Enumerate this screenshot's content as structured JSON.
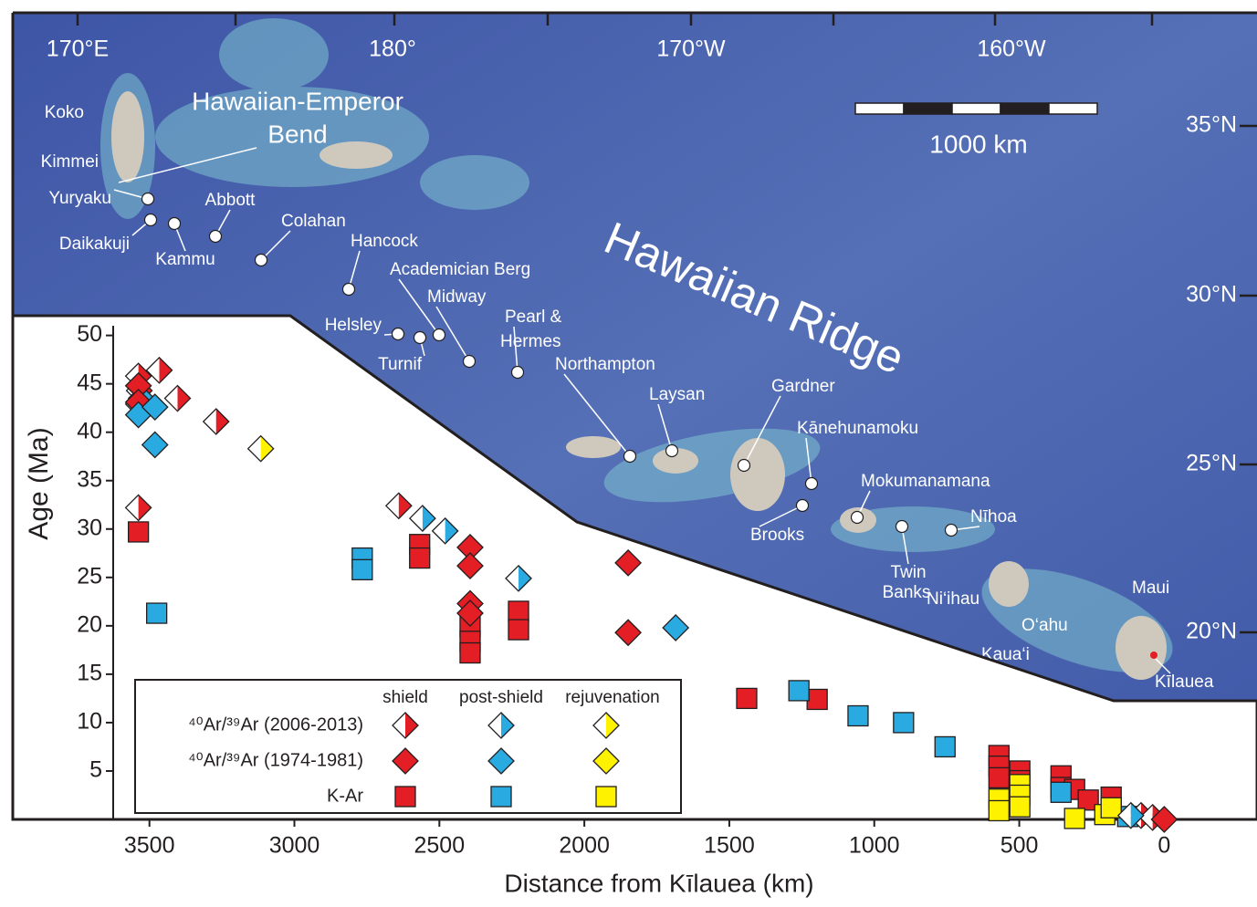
{
  "chart_data": {
    "type": "scatter",
    "xlabel": "Distance from Kīlauea (km)",
    "ylabel": "Age (Ma)",
    "xlim": [
      3625,
      -320
    ],
    "ylim": [
      0,
      51
    ],
    "xticks": [
      3500,
      3000,
      2500,
      2000,
      1500,
      1000,
      500,
      0
    ],
    "yticks": [
      5,
      10,
      15,
      20,
      25,
      30,
      35,
      40,
      45,
      50
    ],
    "stages": [
      {
        "name": "shield",
        "color": "#e31e24"
      },
      {
        "name": "post-shield",
        "color": "#29abe2"
      },
      {
        "name": "rejuvenation",
        "color": "#fff200"
      }
    ],
    "series": [
      {
        "name": "⁴⁰Ar/³⁹Ar (2006-2013)",
        "marker": "half-diamond",
        "groups": [
          {
            "x": [
              3538,
              3466,
              3535,
              3403,
              3538,
              3270,
              3538,
              2640,
              80,
              40
            ],
            "values": [
              45.8,
              46.4,
              44.3,
              43.5,
              42.9,
              41.1,
              32.2,
              32.4,
              0.4,
              0.2
            ]
          },
          {
            "x": [
              3528,
              2558,
              2480,
              2227,
              115
            ],
            "values": [
              43.5,
              31.1,
              29.8,
              24.9,
              0.4
            ]
          },
          {
            "x": [
              3116
            ],
            "values": [
              38.3
            ]
          }
        ]
      },
      {
        "name": "⁴⁰Ar/³⁹Ar (1974-1981)",
        "marker": "diamond",
        "groups": [
          {
            "x": [
              3538,
              3538,
              2394,
              2394,
              2394,
              2394,
              1849,
              1849,
              0
            ],
            "values": [
              44.8,
              43.1,
              28.1,
              26.2,
              22.3,
              21.3,
              26.5,
              19.3,
              0
            ]
          },
          {
            "x": [
              3538,
              3481,
              3481,
              1685
            ],
            "values": [
              41.8,
              42.6,
              38.7,
              19.8
            ]
          },
          {
            "x": [],
            "values": []
          }
        ]
      },
      {
        "name": "K-Ar",
        "marker": "square",
        "groups": [
          {
            "x": [
              3538,
              2568,
              2568,
              2394,
              2394,
              2394,
              2227,
              2227,
              1440,
              1197,
              570,
              570,
              570,
              498,
              498,
              356,
              356,
              309,
              262,
              183
            ],
            "values": [
              29.7,
              28.4,
              27.0,
              19.9,
              18.4,
              17.2,
              21.5,
              19.6,
              12.5,
              12.4,
              6.6,
              5.5,
              4.3,
              5.0,
              4.0,
              4.5,
              3.3,
              3.1,
              2.0,
              2.3
            ]
          },
          {
            "x": [
              3475,
              2766,
              2766,
              1260,
              1056,
              899,
              756,
              356,
              126
            ],
            "values": [
              21.3,
              27.0,
              25.8,
              13.3,
              10.7,
              10.0,
              7.5,
              2.8,
              0.3
            ]
          },
          {
            "x": [
              570,
              570,
              498,
              498,
              498,
              309,
              205,
              183
            ],
            "values": [
              2.1,
              0.9,
              3.6,
              2.5,
              1.3,
              0.1,
              0.5,
              1.2
            ]
          }
        ]
      }
    ]
  },
  "map": {
    "longitudes": [
      "170°E",
      "180°",
      "170°W",
      "160°W"
    ],
    "latitudes": [
      "35°N",
      "30°N",
      "25°N",
      "20°N"
    ],
    "scale_label": "1000 km",
    "bend_label": [
      "Hawaiian-Emperor",
      "Bend"
    ],
    "ridge_label": "Hawaiian Ridge",
    "places": [
      "Koko",
      "Kimmei",
      "Yuryaku",
      "Daikakuji",
      "Kammu",
      "Abbott",
      "Colahan",
      "Hancock",
      "Academician Berg",
      "Midway",
      "Helsley",
      "Turnif",
      "Pearl &",
      "Hermes",
      "Northampton",
      "Laysan",
      "Gardner",
      "Kānehunamoku",
      "Brooks",
      "Mokumanamana",
      "Twin",
      "Banks",
      "Nīhoa",
      "Ni‘ihau",
      "Kaua‘i",
      "O‘ahu",
      "Maui",
      "Kīlauea"
    ]
  }
}
